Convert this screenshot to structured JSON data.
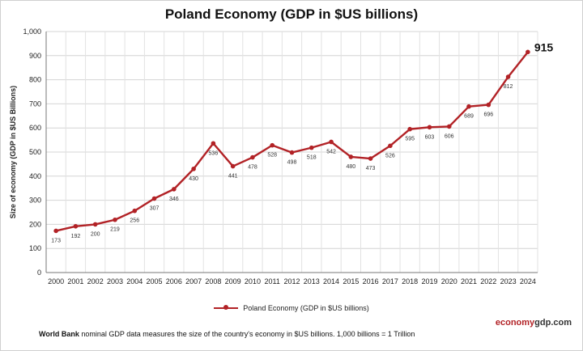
{
  "chart_data": {
    "type": "line",
    "title": "Poland Economy (GDP in $US billions)",
    "ylabel": "Size of economy (GDP in $US Billions)",
    "xlabel": "",
    "x": [
      "2000",
      "2001",
      "2002",
      "2003",
      "2004",
      "2005",
      "2006",
      "2007",
      "2008",
      "2009",
      "2010",
      "2011",
      "2012",
      "2013",
      "2014",
      "2015",
      "2016",
      "2017",
      "2018",
      "2019",
      "2020",
      "2021",
      "2022",
      "2023",
      "2024"
    ],
    "series": [
      {
        "name": "Poland Economy (GDP in $US billions)",
        "color": "#b22226",
        "values": [
          173,
          192,
          200,
          219,
          256,
          307,
          346,
          430,
          536,
          441,
          478,
          528,
          498,
          518,
          542,
          480,
          473,
          526,
          595,
          603,
          606,
          689,
          696,
          812,
          915
        ]
      }
    ],
    "ylim": [
      0,
      1000
    ],
    "yticks": [
      "0",
      "100",
      "200",
      "300",
      "400",
      "500",
      "600",
      "700",
      "800",
      "900",
      "1,000"
    ],
    "yticks_values": [
      0,
      100,
      200,
      300,
      400,
      500,
      600,
      700,
      800,
      900,
      1000
    ],
    "grid": true,
    "legend_placement": "bottom-center",
    "highlight_label": "915"
  },
  "footer": {
    "source_bold": "World Bank",
    "note": " nominal GDP data  measures the size of the country's economy in $US billions. 1,000 billions = 1 Trillion",
    "brand_part1": "economy",
    "brand_part2": "gdp.com"
  }
}
